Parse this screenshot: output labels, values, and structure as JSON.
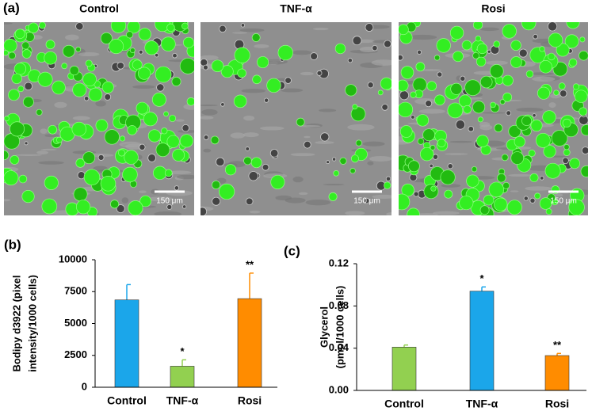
{
  "panel_a": {
    "label": "(a)",
    "images": [
      {
        "title": "Control",
        "scale_bar": "150 μm"
      },
      {
        "title": "TNF-α",
        "scale_bar": "150 μm"
      },
      {
        "title": "Rosi",
        "scale_bar": "150 μm"
      }
    ]
  },
  "chart_data": [
    {
      "type": "bar",
      "panel_label": "(b)",
      "ylabel": [
        "Bodipy d3922 (pixel",
        "intensity/1000 cells)"
      ],
      "categories": [
        "Control",
        "TNF-α",
        "Rosi"
      ],
      "values": [
        6850,
        1650,
        6950
      ],
      "errors": [
        1200,
        500,
        2000
      ],
      "annotations": [
        null,
        "*",
        "**"
      ],
      "colors": [
        "#1ba6ea",
        "#92d050",
        "#ff8c00"
      ],
      "ylim": [
        0,
        10000
      ],
      "yticks": [
        0,
        2500,
        5000,
        7500,
        10000
      ]
    },
    {
      "type": "bar",
      "panel_label": "(c)",
      "ylabel": [
        "Glycerol",
        "(pmol/1000 cells)"
      ],
      "categories": [
        "Control",
        "TNF-α",
        "Rosi"
      ],
      "values": [
        0.041,
        0.094,
        0.033
      ],
      "errors": [
        0.002,
        0.004,
        0.002
      ],
      "annotations": [
        null,
        "*",
        "**"
      ],
      "colors": [
        "#92d050",
        "#1ba6ea",
        "#ff8c00"
      ],
      "ylim": [
        0,
        0.12
      ],
      "yticks": [
        {
          "value": 0,
          "label": "0.00"
        },
        0.04,
        0.08,
        0.12
      ]
    }
  ]
}
